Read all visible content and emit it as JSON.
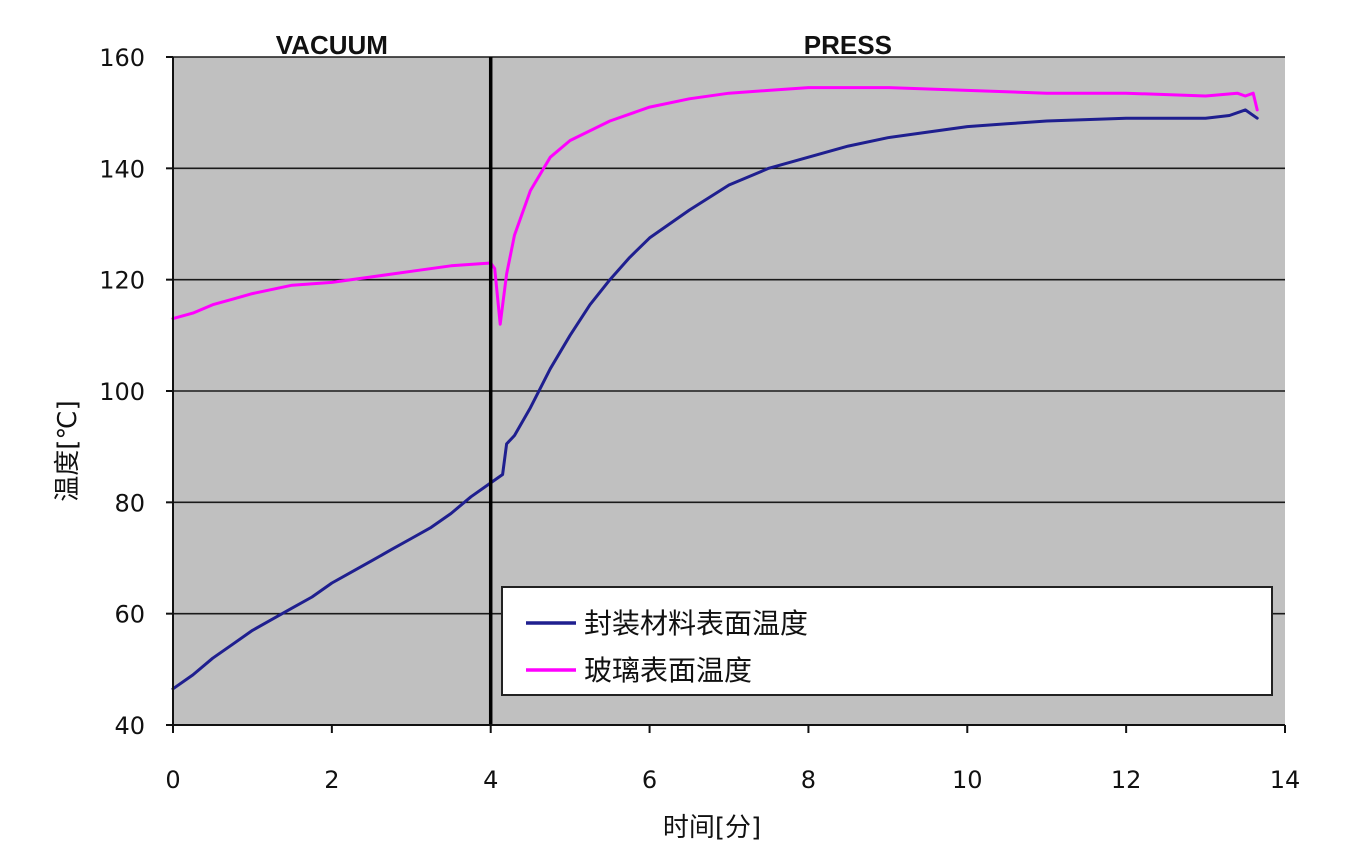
{
  "chart_data": {
    "type": "line",
    "xlabel": "时间[分]",
    "ylabel": "温度[℃]",
    "xlim": [
      0,
      14
    ],
    "ylim": [
      40,
      160
    ],
    "xticks": [
      0,
      2,
      4,
      6,
      8,
      10,
      12,
      14
    ],
    "yticks": [
      40,
      60,
      80,
      100,
      120,
      140,
      160
    ],
    "grid": "horizontal",
    "background": "#c0c0c0",
    "phase_divider_x": 4,
    "phases": [
      {
        "label": "VACUUM",
        "start": 0,
        "end": 4
      },
      {
        "label": "PRESS",
        "start": 4,
        "end": 14
      }
    ],
    "legend_position": "bottom-right",
    "series": [
      {
        "name": "封装材料表面温度",
        "color": "#1f1f8f",
        "x": [
          0,
          0.25,
          0.5,
          0.75,
          1.0,
          1.25,
          1.5,
          1.75,
          1.9,
          2.0,
          2.25,
          2.5,
          2.75,
          3.0,
          3.25,
          3.5,
          3.75,
          4.0,
          4.15,
          4.2,
          4.3,
          4.5,
          4.75,
          5.0,
          5.25,
          5.5,
          5.75,
          6.0,
          6.5,
          7.0,
          7.5,
          8.0,
          8.5,
          9.0,
          9.5,
          10.0,
          10.5,
          11.0,
          12.0,
          13.0,
          13.3,
          13.5,
          13.65
        ],
        "y": [
          46.5,
          49,
          52,
          54.5,
          57,
          59,
          61,
          63,
          64.5,
          65.5,
          67.5,
          69.5,
          71.5,
          73.5,
          75.5,
          78,
          81,
          83.5,
          85,
          90.5,
          92,
          97,
          104,
          110,
          115.5,
          120,
          124,
          127.5,
          132.5,
          137,
          140,
          142,
          144,
          145.5,
          146.5,
          147.5,
          148,
          148.5,
          149,
          149,
          149.5,
          150.5,
          149
        ]
      },
      {
        "name": "玻璃表面温度",
        "color": "#ff00ff",
        "x": [
          0,
          0.25,
          0.5,
          0.75,
          1.0,
          1.5,
          2.0,
          2.5,
          3.0,
          3.5,
          4.0,
          4.05,
          4.12,
          4.2,
          4.3,
          4.5,
          4.75,
          5.0,
          5.5,
          6.0,
          6.5,
          7.0,
          7.5,
          8.0,
          9.0,
          10.0,
          11.0,
          12.0,
          13.0,
          13.4,
          13.5,
          13.6,
          13.65
        ],
        "y": [
          113,
          114,
          115.5,
          116.5,
          117.5,
          119,
          119.5,
          120.5,
          121.5,
          122.5,
          123,
          122,
          112,
          121,
          128,
          136,
          142,
          145,
          148.5,
          151,
          152.5,
          153.5,
          154,
          154.5,
          154.5,
          154,
          153.5,
          153.5,
          153,
          153.5,
          153,
          153.5,
          150.5
        ]
      }
    ]
  }
}
